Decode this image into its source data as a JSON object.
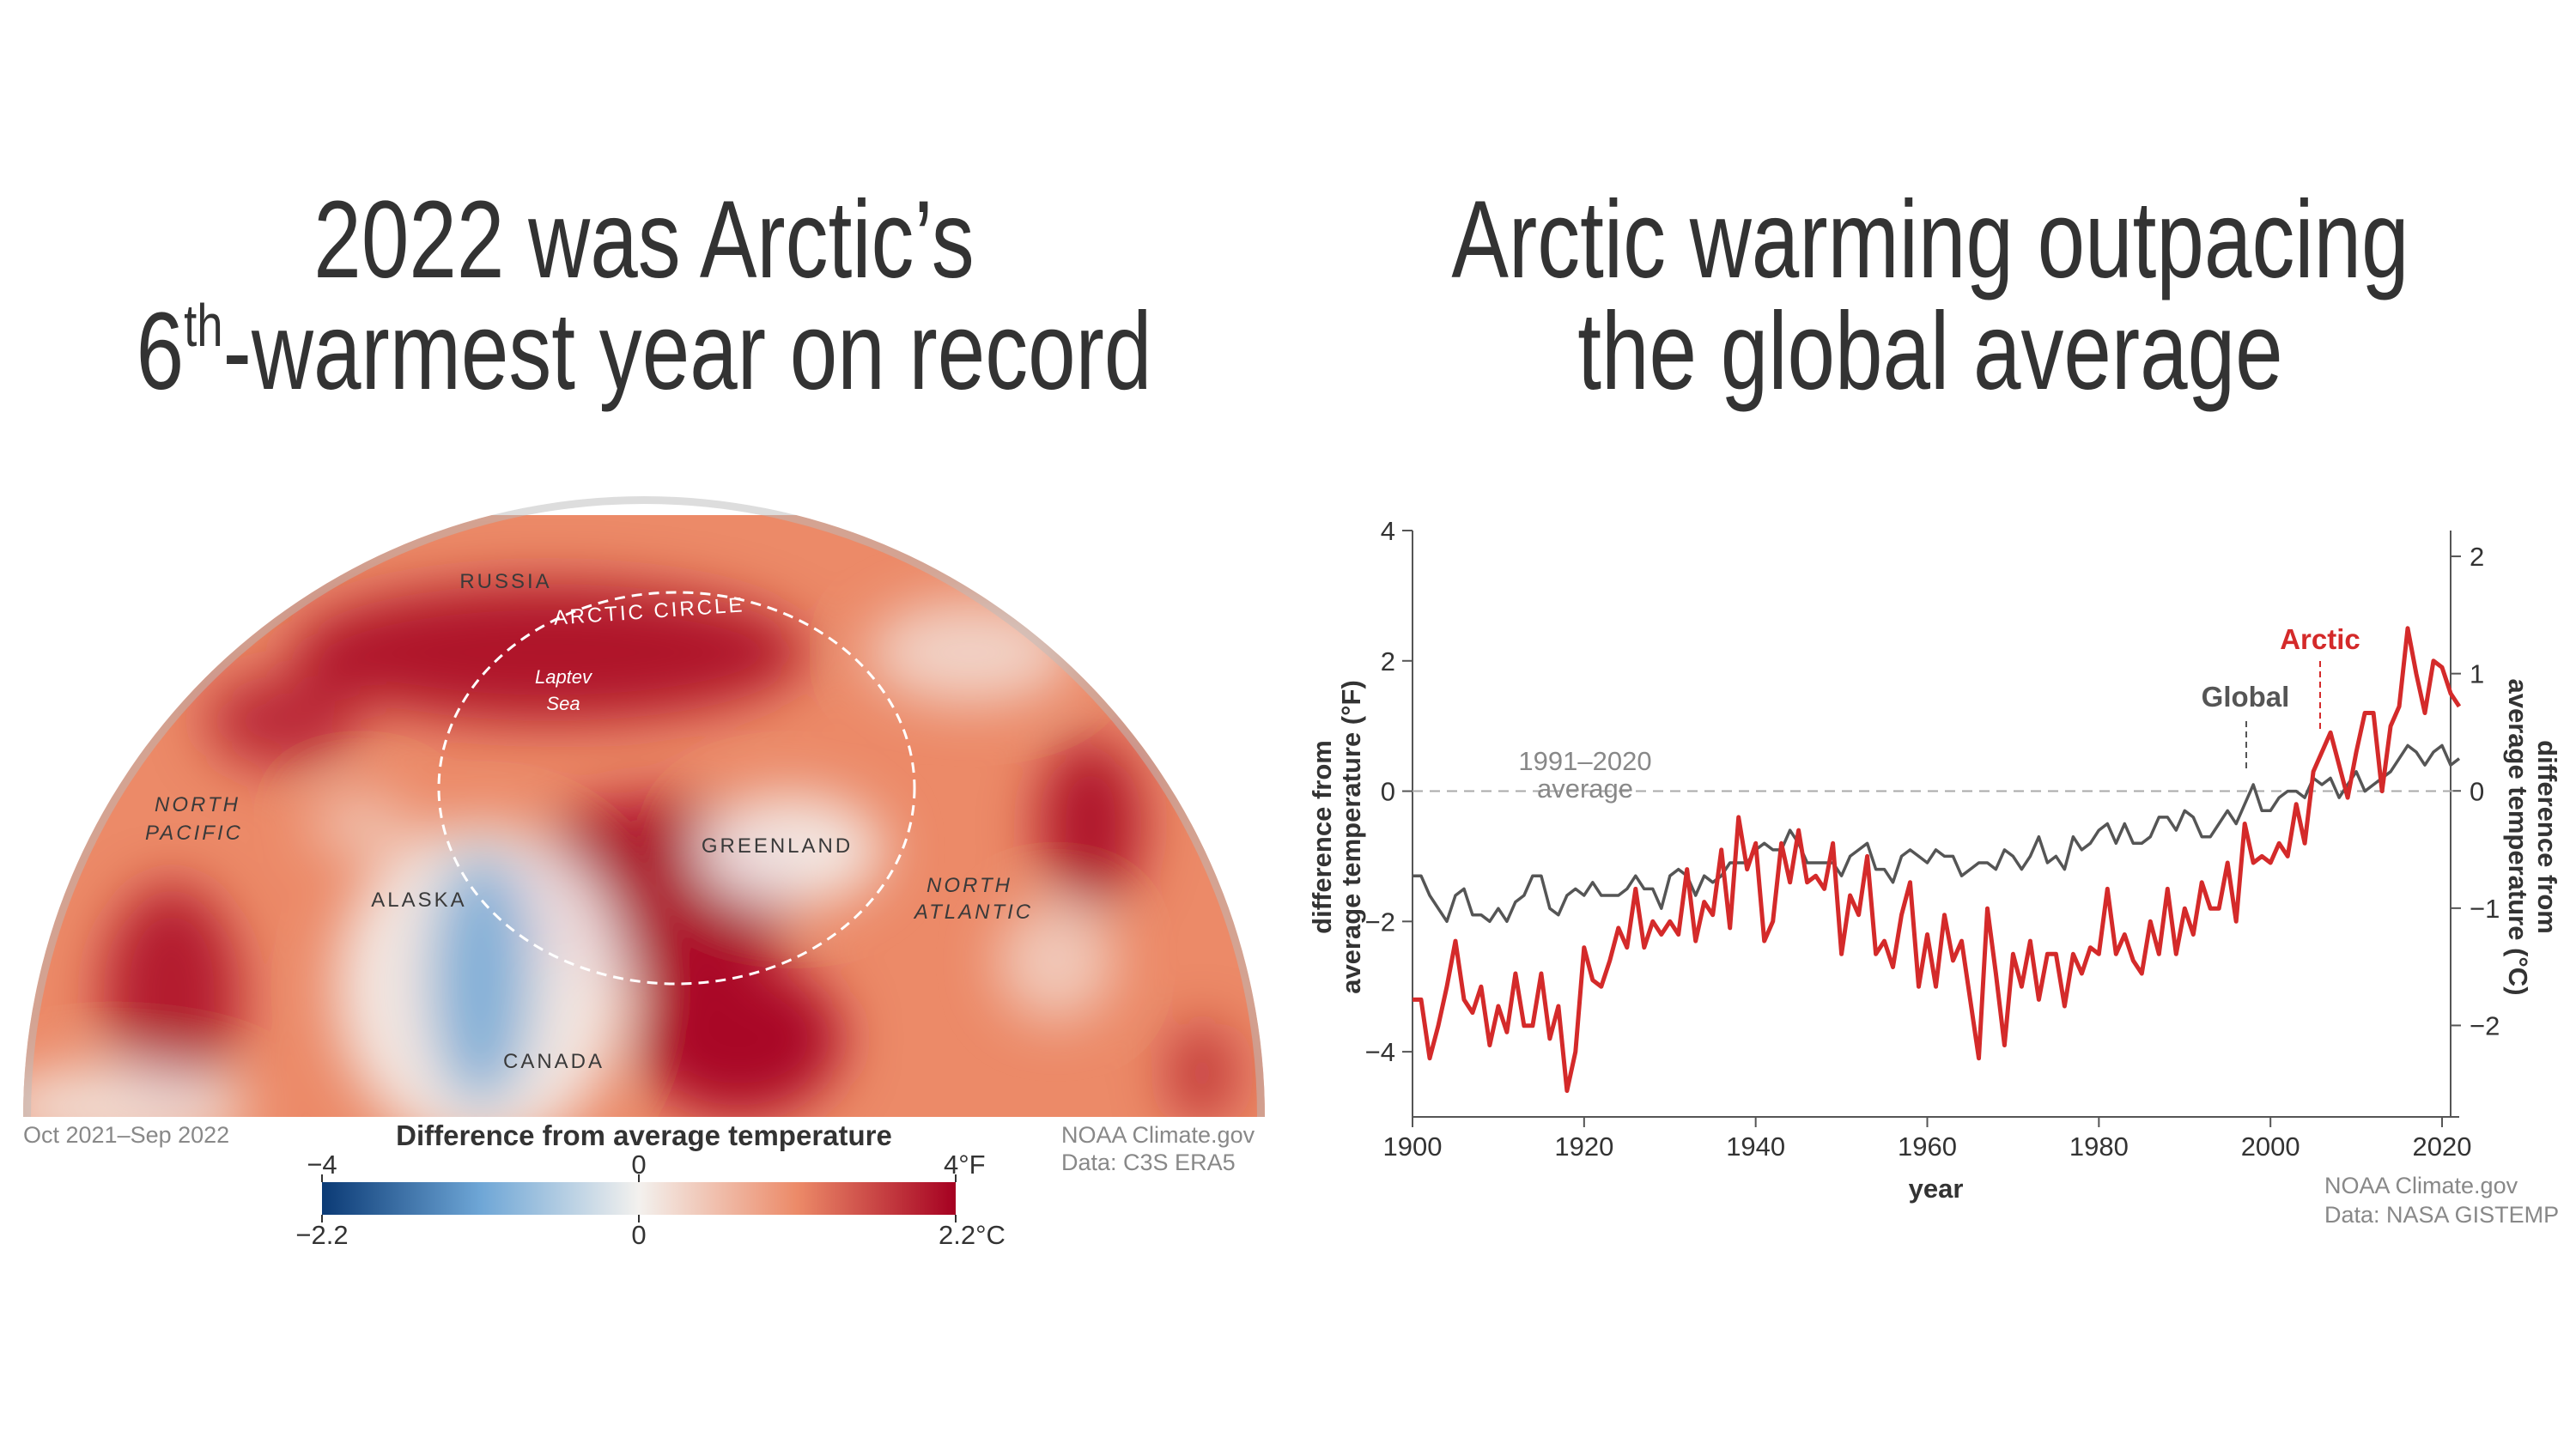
{
  "chart_data": [
    {
      "type": "map",
      "title": {
        "line1": "2022 was Arctic’s",
        "line2": [
          "6",
          "th",
          "-warmest year on record"
        ]
      },
      "labels": {
        "russia": "RUSSIA",
        "arctic_circle": "ARCTIC CIRCLE",
        "laptev": [
          "Laptev",
          "Sea"
        ],
        "north_pacific": [
          "NORTH",
          "PACIFIC"
        ],
        "greenland": "GREENLAND",
        "north_atlantic": [
          "NORTH",
          "ATLANTIC"
        ],
        "alaska": "ALASKA",
        "canada": "CANADA"
      },
      "period": "Oct 2021–Sep 2022",
      "colorbar": {
        "title": "Difference from average temperature",
        "colormap": [
          "#0b3a75",
          "#6ea6d6",
          "#f3f1ee",
          "#ec8a68",
          "#a50021"
        ],
        "flim": [
          -4,
          4
        ],
        "fticks": [
          {
            "value": -4,
            "label": "−4"
          },
          0,
          {
            "value": 4,
            "label": "4°F"
          }
        ],
        "clim": [
          -2.2,
          2.2
        ],
        "cticks": [
          {
            "value": -2.2,
            "label": "−2.2"
          },
          0,
          {
            "value": 2.2,
            "label": "2.2°C"
          }
        ]
      },
      "credit": "NOAA Climate.gov",
      "source": "Data: C3S ERA5"
    },
    {
      "type": "line",
      "title": [
        "Arctic warming outpacing",
        "the global average"
      ],
      "xlabel": "year",
      "ylabel": [
        "difference from",
        "average temperature (°F)"
      ],
      "y2label": [
        "difference from",
        "average temperature (°C)"
      ],
      "xlim": [
        1900,
        2022
      ],
      "xticks": [
        1900,
        1920,
        1940,
        1960,
        1980,
        2000,
        2020
      ],
      "ylim": [
        -5,
        4
      ],
      "yticks": [
        {
          "value": -4,
          "label": "−4"
        },
        {
          "value": -2,
          "label": "−2"
        },
        0,
        2,
        4
      ],
      "y2lim": [
        -2.78,
        2.22
      ],
      "y2ticks": [
        {
          "value": -2,
          "label": "−2"
        },
        {
          "value": -1,
          "label": "−1"
        },
        0,
        1,
        2
      ],
      "reference_line": {
        "value": 0,
        "label": [
          "1991–2020",
          "average"
        ]
      },
      "credit": "NOAA Climate.gov",
      "source": "Data: NASA GISTEMP",
      "x": [
        1900,
        1901,
        1902,
        1903,
        1904,
        1905,
        1906,
        1907,
        1908,
        1909,
        1910,
        1911,
        1912,
        1913,
        1914,
        1915,
        1916,
        1917,
        1918,
        1919,
        1920,
        1921,
        1922,
        1923,
        1924,
        1925,
        1926,
        1927,
        1928,
        1929,
        1930,
        1931,
        1932,
        1933,
        1934,
        1935,
        1936,
        1937,
        1938,
        1939,
        1940,
        1941,
        1942,
        1943,
        1944,
        1945,
        1946,
        1947,
        1948,
        1949,
        1950,
        1951,
        1952,
        1953,
        1954,
        1955,
        1956,
        1957,
        1958,
        1959,
        1960,
        1961,
        1962,
        1963,
        1964,
        1965,
        1966,
        1967,
        1968,
        1969,
        1970,
        1971,
        1972,
        1973,
        1974,
        1975,
        1976,
        1977,
        1978,
        1979,
        1980,
        1981,
        1982,
        1983,
        1984,
        1985,
        1986,
        1987,
        1988,
        1989,
        1990,
        1991,
        1992,
        1993,
        1994,
        1995,
        1996,
        1997,
        1998,
        1999,
        2000,
        2001,
        2002,
        2003,
        2004,
        2005,
        2006,
        2007,
        2008,
        2009,
        2010,
        2011,
        2012,
        2013,
        2014,
        2015,
        2016,
        2017,
        2018,
        2019,
        2020,
        2021,
        2022
      ],
      "series": [
        {
          "name": "Arctic",
          "color": "#d42a2a",
          "values": [
            -3.2,
            -3.2,
            -4.1,
            -3.6,
            -3.0,
            -2.3,
            -3.2,
            -3.4,
            -3.0,
            -3.9,
            -3.3,
            -3.7,
            -2.8,
            -3.6,
            -3.6,
            -2.8,
            -3.8,
            -3.3,
            -4.6,
            -4.0,
            -2.4,
            -2.9,
            -3.0,
            -2.6,
            -2.1,
            -2.4,
            -1.5,
            -2.4,
            -2.0,
            -2.2,
            -2.0,
            -2.2,
            -1.2,
            -2.3,
            -1.7,
            -1.9,
            -0.9,
            -2.1,
            -0.4,
            -1.2,
            -0.8,
            -2.3,
            -2.0,
            -0.8,
            -1.4,
            -0.6,
            -1.4,
            -1.3,
            -1.5,
            -0.8,
            -2.5,
            -1.6,
            -1.9,
            -1.0,
            -2.5,
            -2.3,
            -2.7,
            -1.9,
            -1.4,
            -3.0,
            -2.2,
            -3.0,
            -1.9,
            -2.6,
            -2.3,
            -3.2,
            -4.1,
            -1.8,
            -2.8,
            -3.9,
            -2.5,
            -3.0,
            -2.3,
            -3.2,
            -2.5,
            -2.5,
            -3.3,
            -2.5,
            -2.8,
            -2.4,
            -2.5,
            -1.5,
            -2.5,
            -2.2,
            -2.6,
            -2.8,
            -2.0,
            -2.5,
            -1.5,
            -2.5,
            -1.8,
            -2.2,
            -1.4,
            -1.8,
            -1.8,
            -1.1,
            -2.0,
            -0.5,
            -1.1,
            -1.0,
            -1.1,
            -0.8,
            -1.0,
            -0.2,
            -0.8,
            0.3,
            0.6,
            0.9,
            0.4,
            -0.1,
            0.6,
            1.2,
            1.2,
            0.0,
            1.0,
            1.3,
            2.5,
            1.8,
            1.2,
            2.0,
            1.9,
            1.5,
            1.3
          ]
        },
        {
          "name": "Global",
          "color": "#555555",
          "values": [
            -1.3,
            -1.3,
            -1.6,
            -1.8,
            -2.0,
            -1.6,
            -1.5,
            -1.9,
            -1.9,
            -2.0,
            -1.8,
            -2.0,
            -1.7,
            -1.6,
            -1.3,
            -1.3,
            -1.8,
            -1.9,
            -1.6,
            -1.5,
            -1.6,
            -1.4,
            -1.6,
            -1.6,
            -1.6,
            -1.5,
            -1.3,
            -1.5,
            -1.5,
            -1.8,
            -1.3,
            -1.2,
            -1.3,
            -1.6,
            -1.3,
            -1.4,
            -1.3,
            -1.1,
            -1.1,
            -1.1,
            -0.9,
            -0.8,
            -0.9,
            -0.9,
            -0.6,
            -0.8,
            -1.1,
            -1.1,
            -1.1,
            -1.1,
            -1.3,
            -1.0,
            -0.9,
            -0.8,
            -1.2,
            -1.2,
            -1.4,
            -1.0,
            -0.9,
            -1.0,
            -1.1,
            -0.9,
            -1.0,
            -1.0,
            -1.3,
            -1.2,
            -1.1,
            -1.1,
            -1.2,
            -0.9,
            -1.0,
            -1.2,
            -1.0,
            -0.7,
            -1.1,
            -1.0,
            -1.2,
            -0.7,
            -0.9,
            -0.8,
            -0.6,
            -0.5,
            -0.8,
            -0.5,
            -0.8,
            -0.8,
            -0.7,
            -0.4,
            -0.4,
            -0.6,
            -0.3,
            -0.4,
            -0.7,
            -0.7,
            -0.5,
            -0.3,
            -0.5,
            -0.2,
            0.1,
            -0.3,
            -0.3,
            -0.1,
            0.0,
            0.0,
            -0.1,
            0.2,
            0.1,
            0.2,
            -0.1,
            0.1,
            0.3,
            0.0,
            0.1,
            0.2,
            0.3,
            0.5,
            0.7,
            0.6,
            0.4,
            0.6,
            0.7,
            0.4,
            0.5
          ]
        }
      ]
    }
  ]
}
